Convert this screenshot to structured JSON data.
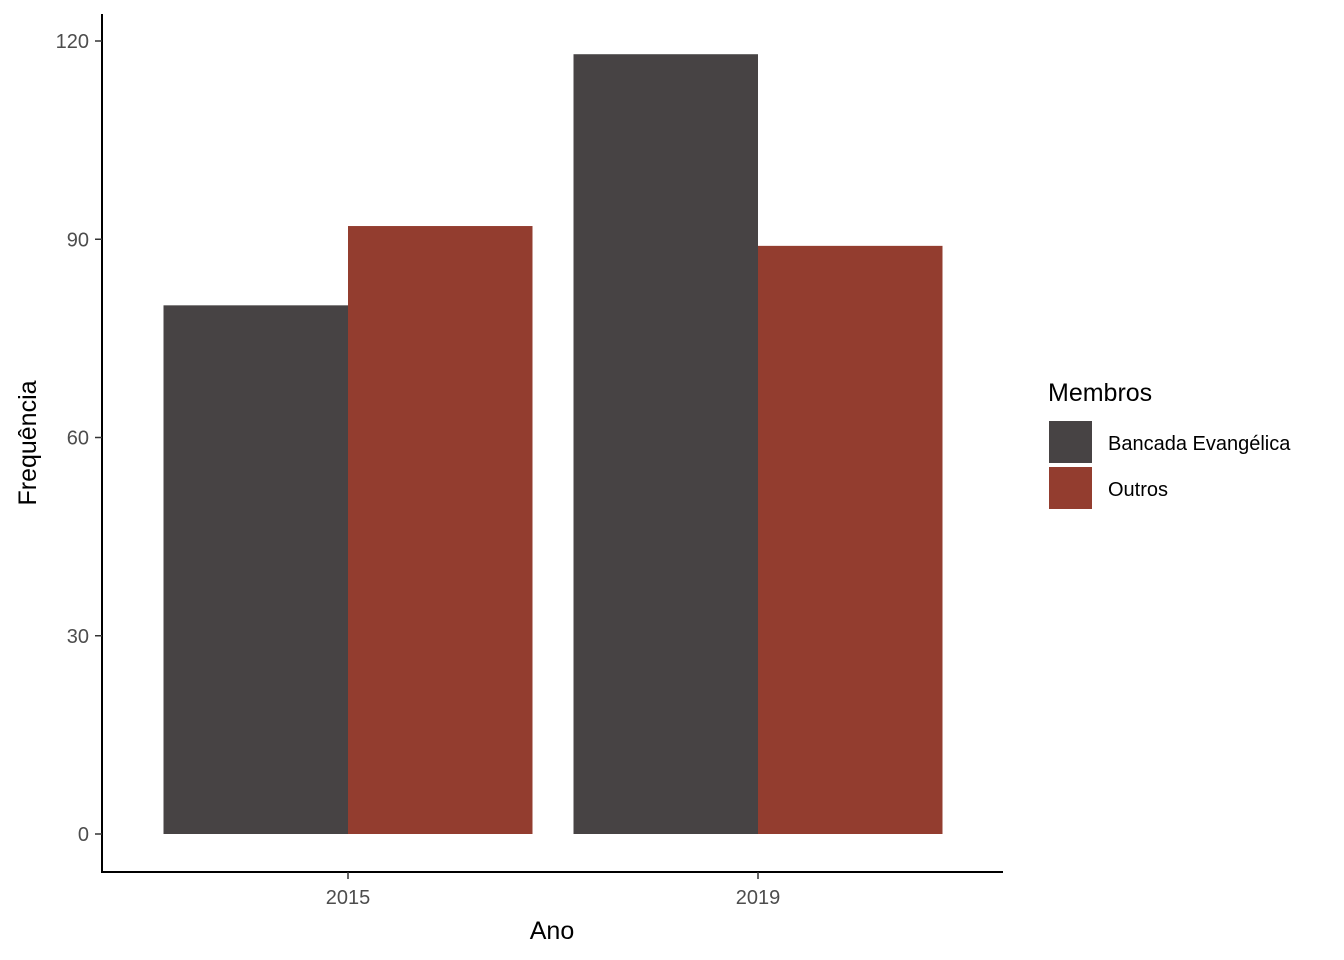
{
  "chart_data": {
    "type": "bar",
    "categories": [
      "2015",
      "2019"
    ],
    "series": [
      {
        "name": "Bancada Evangélica",
        "values": [
          80,
          118
        ],
        "color": "#474344"
      },
      {
        "name": "Outros",
        "values": [
          92,
          89
        ],
        "color": "#933d2f"
      }
    ],
    "xlabel": "Ano",
    "ylabel": "Frequência",
    "ylim": [
      0,
      120
    ],
    "yticks": [
      0,
      30,
      60,
      90,
      120
    ],
    "legend": {
      "title": "Membros",
      "position": "right"
    },
    "grid": false
  }
}
